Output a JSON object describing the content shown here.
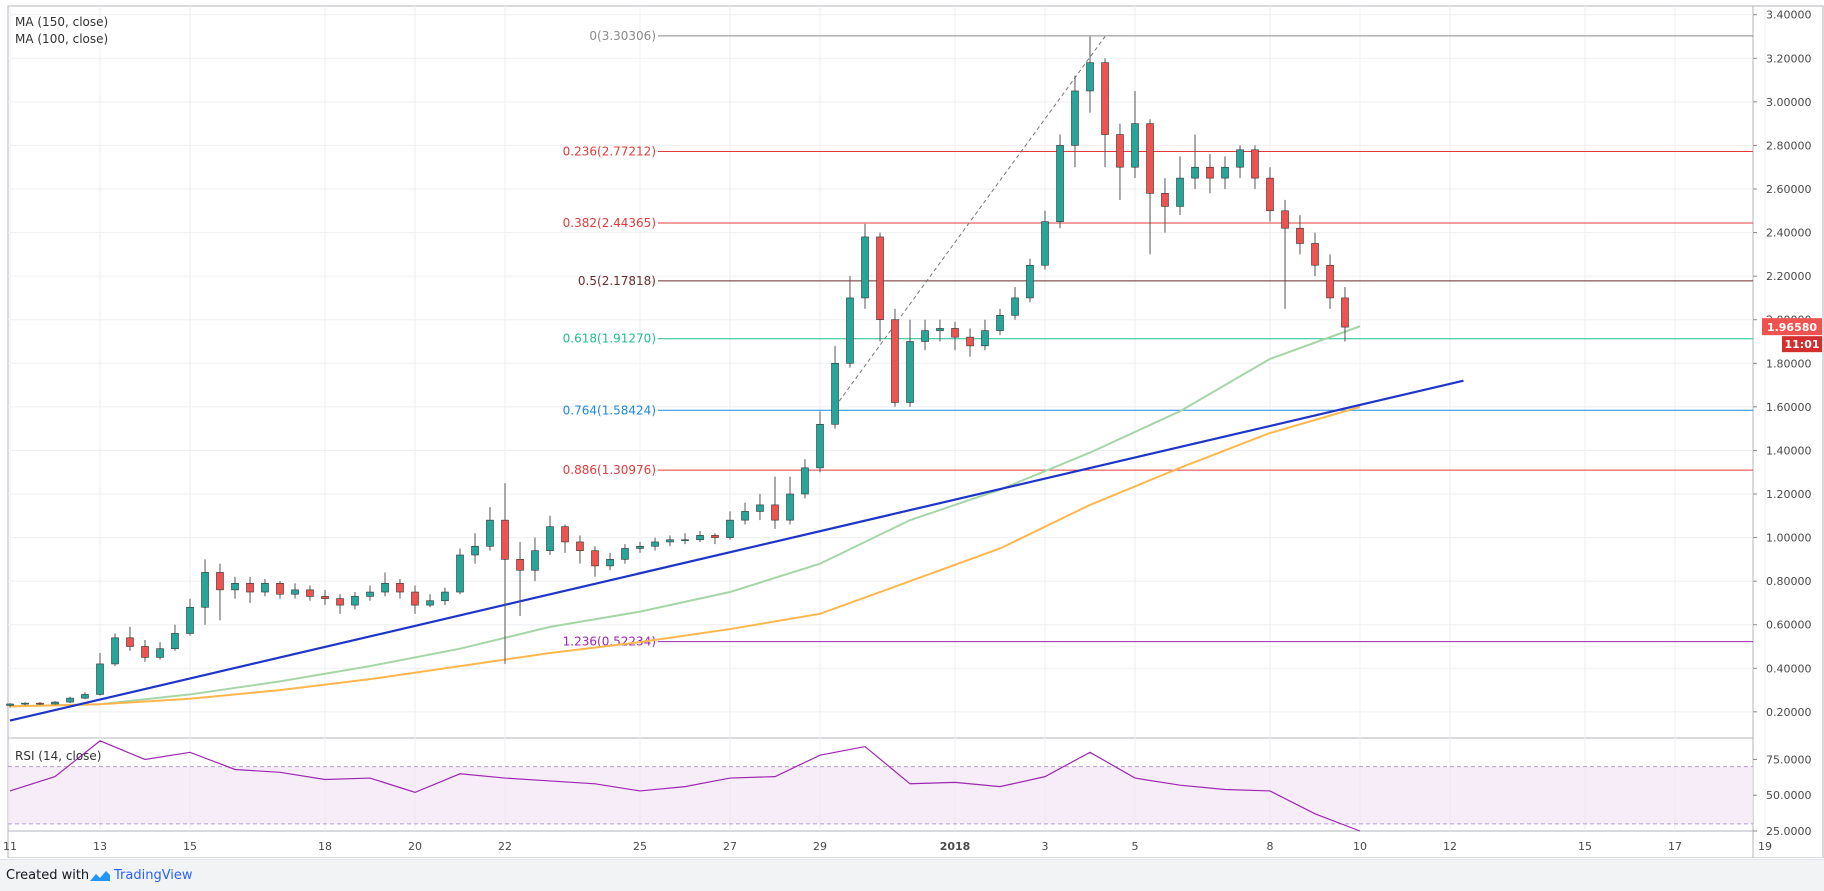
{
  "chart_data": {
    "type": "candlestick",
    "price_range": [
      0.08,
      3.44
    ],
    "rsi_range": [
      25,
      90
    ],
    "price_ticks": [
      "3.40000",
      "3.20000",
      "3.00000",
      "2.80000",
      "2.60000",
      "2.40000",
      "2.20000",
      "2.00000",
      "1.80000",
      "1.60000",
      "1.40000",
      "1.20000",
      "1.00000",
      "0.80000",
      "0.60000",
      "0.40000",
      "0.20000"
    ],
    "rsi_ticks": [
      "75.0000",
      "50.0000",
      "25.0000"
    ],
    "x_labels": [
      {
        "label": "11",
        "pos": 0.0
      },
      {
        "label": "13",
        "pos": 0.1
      },
      {
        "label": "15",
        "pos": 0.2
      },
      {
        "label": "18",
        "pos": 0.35
      },
      {
        "label": "20",
        "pos": 0.45
      },
      {
        "label": "22",
        "pos": 0.55
      },
      {
        "label": "25",
        "pos": 0.7
      },
      {
        "label": "27",
        "pos": 0.8
      },
      {
        "label": "29",
        "pos": 0.9
      },
      {
        "label": "2018",
        "pos": 1.05,
        "bold": true
      },
      {
        "label": "3",
        "pos": 1.15
      },
      {
        "label": "5",
        "pos": 1.25
      },
      {
        "label": "8",
        "pos": 1.4
      },
      {
        "label": "10",
        "pos": 1.5
      },
      {
        "label": "12",
        "pos": 1.6
      },
      {
        "label": "15",
        "pos": 1.75
      },
      {
        "label": "17",
        "pos": 1.85
      },
      {
        "label": "19",
        "pos": 1.95
      }
    ],
    "legend": [
      "MA (150, close)",
      "MA (100, close)"
    ],
    "rsi_label": "RSI (14, close)",
    "fib_levels": [
      {
        "ratio": "0",
        "value": "3.30306",
        "price": 3.30306,
        "color": "#8a8a8a"
      },
      {
        "ratio": "0.236",
        "value": "2.77212",
        "price": 2.77212,
        "color": "#e23b3b"
      },
      {
        "ratio": "0.382",
        "value": "2.44365",
        "price": 2.44365,
        "color": "#e23b3b"
      },
      {
        "ratio": "0.5",
        "value": "2.17818",
        "price": 2.17818,
        "color": "#6d2b2b"
      },
      {
        "ratio": "0.618",
        "value": "1.91270",
        "price": 1.9127,
        "color": "#1fbf8f"
      },
      {
        "ratio": "0.764",
        "value": "1.58424",
        "price": 1.58424,
        "color": "#1e88e5"
      },
      {
        "ratio": "0.886",
        "value": "1.30976",
        "price": 1.30976,
        "color": "#e23b3b"
      },
      {
        "ratio": "1.236",
        "value": "0.52234",
        "price": 0.52234,
        "color": "#9c27b0"
      }
    ],
    "current_price": "1.96580",
    "countdown": "11:01",
    "colors": {
      "up": "#26a69a",
      "down": "#ef5350",
      "wick": "#555555",
      "ma150": "#a5d6a7",
      "ma100": "#ffb74d",
      "trend": "#1f35c9",
      "rsi": "#9c27b0"
    },
    "candles": [
      [
        0.0,
        0.23,
        0.236,
        0.22,
        0.24
      ],
      [
        0.0167,
        0.236,
        0.24,
        0.23,
        0.244
      ],
      [
        0.0333,
        0.24,
        0.236,
        0.232,
        0.245
      ],
      [
        0.05,
        0.236,
        0.245,
        0.233,
        0.25
      ],
      [
        0.0667,
        0.245,
        0.263,
        0.24,
        0.27
      ],
      [
        0.0833,
        0.263,
        0.28,
        0.258,
        0.29
      ],
      [
        0.1,
        0.28,
        0.42,
        0.275,
        0.47
      ],
      [
        0.1167,
        0.42,
        0.54,
        0.41,
        0.56
      ],
      [
        0.1333,
        0.54,
        0.5,
        0.48,
        0.59
      ],
      [
        0.15,
        0.5,
        0.45,
        0.43,
        0.53
      ],
      [
        0.1667,
        0.45,
        0.49,
        0.44,
        0.52
      ],
      [
        0.1833,
        0.49,
        0.56,
        0.48,
        0.6
      ],
      [
        0.2,
        0.56,
        0.68,
        0.55,
        0.72
      ],
      [
        0.2167,
        0.68,
        0.84,
        0.6,
        0.9
      ],
      [
        0.2333,
        0.84,
        0.76,
        0.62,
        0.88
      ],
      [
        0.25,
        0.76,
        0.79,
        0.72,
        0.82
      ],
      [
        0.2667,
        0.79,
        0.75,
        0.7,
        0.82
      ],
      [
        0.2833,
        0.75,
        0.79,
        0.73,
        0.81
      ],
      [
        0.3,
        0.79,
        0.74,
        0.72,
        0.8
      ],
      [
        0.3167,
        0.74,
        0.76,
        0.72,
        0.79
      ],
      [
        0.3333,
        0.76,
        0.73,
        0.71,
        0.78
      ],
      [
        0.35,
        0.73,
        0.72,
        0.69,
        0.76
      ],
      [
        0.3667,
        0.72,
        0.69,
        0.65,
        0.74
      ],
      [
        0.3833,
        0.69,
        0.73,
        0.67,
        0.75
      ],
      [
        0.4,
        0.73,
        0.75,
        0.71,
        0.78
      ],
      [
        0.4167,
        0.75,
        0.79,
        0.73,
        0.84
      ],
      [
        0.4333,
        0.79,
        0.75,
        0.72,
        0.81
      ],
      [
        0.45,
        0.75,
        0.69,
        0.65,
        0.78
      ],
      [
        0.4667,
        0.69,
        0.71,
        0.68,
        0.74
      ],
      [
        0.4833,
        0.71,
        0.75,
        0.69,
        0.77
      ],
      [
        0.5,
        0.75,
        0.92,
        0.74,
        0.95
      ],
      [
        0.5167,
        0.92,
        0.96,
        0.88,
        1.02
      ],
      [
        0.5333,
        0.96,
        1.08,
        0.94,
        1.14
      ],
      [
        0.55,
        1.08,
        0.9,
        0.42,
        1.25
      ],
      [
        0.5667,
        0.9,
        0.85,
        0.64,
        0.98
      ],
      [
        0.5833,
        0.85,
        0.94,
        0.8,
        1.0
      ],
      [
        0.6,
        0.94,
        1.05,
        0.92,
        1.1
      ],
      [
        0.6167,
        1.05,
        0.98,
        0.93,
        1.06
      ],
      [
        0.6333,
        0.98,
        0.94,
        0.88,
        1.01
      ],
      [
        0.65,
        0.94,
        0.87,
        0.82,
        0.96
      ],
      [
        0.6667,
        0.87,
        0.9,
        0.85,
        0.93
      ],
      [
        0.6833,
        0.9,
        0.95,
        0.88,
        0.97
      ],
      [
        0.7,
        0.95,
        0.96,
        0.93,
        0.98
      ],
      [
        0.7167,
        0.96,
        0.98,
        0.94,
        1.0
      ],
      [
        0.7333,
        0.98,
        0.99,
        0.96,
        1.01
      ],
      [
        0.75,
        0.99,
        0.99,
        0.97,
        1.02
      ],
      [
        0.7667,
        0.99,
        1.01,
        0.98,
        1.03
      ],
      [
        0.7833,
        1.01,
        1.0,
        0.97,
        1.02
      ],
      [
        0.8,
        1.0,
        1.08,
        0.99,
        1.12
      ],
      [
        0.8167,
        1.08,
        1.12,
        1.06,
        1.16
      ],
      [
        0.8333,
        1.12,
        1.15,
        1.08,
        1.2
      ],
      [
        0.85,
        1.15,
        1.08,
        1.04,
        1.28
      ],
      [
        0.8667,
        1.08,
        1.2,
        1.06,
        1.28
      ],
      [
        0.8833,
        1.2,
        1.32,
        1.18,
        1.36
      ],
      [
        0.9,
        1.32,
        1.52,
        1.3,
        1.58
      ],
      [
        0.9167,
        1.52,
        1.8,
        1.5,
        1.88
      ],
      [
        0.9333,
        1.8,
        2.1,
        1.78,
        2.2
      ],
      [
        0.95,
        2.1,
        2.38,
        2.05,
        2.44
      ],
      [
        0.9667,
        2.38,
        2.0,
        1.9,
        2.4
      ],
      [
        0.9833,
        2.0,
        1.62,
        1.6,
        2.05
      ],
      [
        1.0,
        1.62,
        1.9,
        1.6,
        2.0
      ],
      [
        1.0167,
        1.9,
        1.95,
        1.86,
        2.0
      ],
      [
        1.0333,
        1.95,
        1.96,
        1.9,
        2.0
      ],
      [
        1.05,
        1.96,
        1.92,
        1.86,
        1.99
      ],
      [
        1.0667,
        1.92,
        1.88,
        1.83,
        1.96
      ],
      [
        1.0833,
        1.88,
        1.95,
        1.86,
        2.0
      ],
      [
        1.1,
        1.95,
        2.02,
        1.93,
        2.05
      ],
      [
        1.1167,
        2.02,
        2.1,
        2.0,
        2.15
      ],
      [
        1.1333,
        2.1,
        2.25,
        2.08,
        2.28
      ],
      [
        1.15,
        2.25,
        2.45,
        2.23,
        2.5
      ],
      [
        1.1667,
        2.45,
        2.8,
        2.42,
        2.85
      ],
      [
        1.1833,
        2.8,
        3.05,
        2.7,
        3.12
      ],
      [
        1.2,
        3.05,
        3.18,
        2.95,
        3.3
      ],
      [
        1.2167,
        3.18,
        2.85,
        2.7,
        3.2
      ],
      [
        1.2333,
        2.85,
        2.7,
        2.55,
        2.9
      ],
      [
        1.25,
        2.7,
        2.9,
        2.65,
        3.05
      ],
      [
        1.2667,
        2.9,
        2.58,
        2.3,
        2.92
      ],
      [
        1.2833,
        2.58,
        2.52,
        2.4,
        2.65
      ],
      [
        1.3,
        2.52,
        2.65,
        2.48,
        2.75
      ],
      [
        1.3167,
        2.65,
        2.7,
        2.6,
        2.85
      ],
      [
        1.3333,
        2.7,
        2.65,
        2.58,
        2.76
      ],
      [
        1.35,
        2.65,
        2.7,
        2.6,
        2.75
      ],
      [
        1.3667,
        2.7,
        2.78,
        2.65,
        2.8
      ],
      [
        1.3833,
        2.78,
        2.65,
        2.6,
        2.8
      ],
      [
        1.4,
        2.65,
        2.5,
        2.45,
        2.7
      ],
      [
        1.4167,
        2.5,
        2.42,
        2.05,
        2.55
      ],
      [
        1.4333,
        2.42,
        2.35,
        2.3,
        2.48
      ],
      [
        1.45,
        2.35,
        2.25,
        2.2,
        2.4
      ],
      [
        1.4667,
        2.25,
        2.1,
        2.05,
        2.3
      ],
      [
        1.4833,
        2.1,
        1.966,
        1.9,
        2.15
      ]
    ],
    "ma150": [
      [
        0.0,
        0.225
      ],
      [
        0.1,
        0.235
      ],
      [
        0.2,
        0.28
      ],
      [
        0.3,
        0.34
      ],
      [
        0.4,
        0.41
      ],
      [
        0.5,
        0.49
      ],
      [
        0.6,
        0.59
      ],
      [
        0.7,
        0.66
      ],
      [
        0.8,
        0.75
      ],
      [
        0.9,
        0.88
      ],
      [
        1.0,
        1.08
      ],
      [
        1.1,
        1.22
      ],
      [
        1.2,
        1.39
      ],
      [
        1.3,
        1.58
      ],
      [
        1.4,
        1.82
      ],
      [
        1.5,
        1.97
      ]
    ],
    "ma100": [
      [
        0.0,
        0.225
      ],
      [
        0.1,
        0.235
      ],
      [
        0.2,
        0.26
      ],
      [
        0.3,
        0.3
      ],
      [
        0.4,
        0.35
      ],
      [
        0.5,
        0.41
      ],
      [
        0.6,
        0.47
      ],
      [
        0.7,
        0.52
      ],
      [
        0.8,
        0.58
      ],
      [
        0.9,
        0.65
      ],
      [
        1.0,
        0.8
      ],
      [
        1.1,
        0.95
      ],
      [
        1.2,
        1.15
      ],
      [
        1.3,
        1.32
      ],
      [
        1.4,
        1.48
      ],
      [
        1.5,
        1.6
      ]
    ],
    "trendline": [
      [
        0.0,
        0.16
      ],
      [
        1.615,
        1.72
      ]
    ],
    "rsi": [
      [
        0.0,
        53
      ],
      [
        0.05,
        63
      ],
      [
        0.1,
        88
      ],
      [
        0.15,
        75
      ],
      [
        0.2,
        80
      ],
      [
        0.25,
        68
      ],
      [
        0.3,
        66
      ],
      [
        0.35,
        61
      ],
      [
        0.4,
        62
      ],
      [
        0.45,
        52
      ],
      [
        0.5,
        65
      ],
      [
        0.55,
        62
      ],
      [
        0.6,
        60
      ],
      [
        0.65,
        58
      ],
      [
        0.7,
        53
      ],
      [
        0.75,
        56
      ],
      [
        0.8,
        62
      ],
      [
        0.85,
        63
      ],
      [
        0.9,
        78
      ],
      [
        0.95,
        84
      ],
      [
        1.0,
        58
      ],
      [
        1.05,
        59
      ],
      [
        1.1,
        56
      ],
      [
        1.15,
        63
      ],
      [
        1.2,
        80
      ],
      [
        1.25,
        62
      ],
      [
        1.3,
        57
      ],
      [
        1.35,
        54
      ],
      [
        1.4,
        53
      ],
      [
        1.45,
        37
      ],
      [
        1.5,
        25
      ]
    ]
  }
}
